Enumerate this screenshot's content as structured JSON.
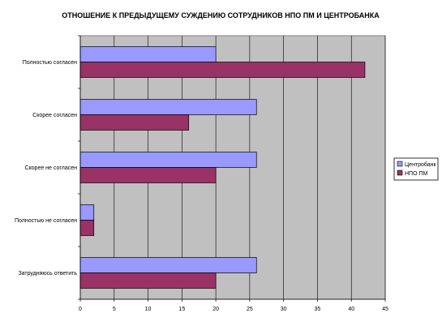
{
  "chart_data": {
    "type": "bar",
    "orientation": "horizontal",
    "title": "ОТНОШЕНИЕ К ПРЕДЫДУЩЕМУ СУЖДЕНИЮ СОТРУДНИКОВ НПО ПМ И ЦЕНТРОБАНКА",
    "xlabel": "",
    "ylabel": "",
    "categories": [
      "Полностью согласен",
      "Скорее согласен",
      "Скорее не согласен",
      "Полностью не согласен",
      "Затрудняюсь ответить"
    ],
    "series": [
      {
        "name": "Центробанк",
        "values": [
          20,
          26,
          26,
          2,
          26
        ],
        "color": "#9999ff"
      },
      {
        "name": "НПО ПМ",
        "values": [
          42,
          16,
          20,
          2,
          20
        ],
        "color": "#993366"
      }
    ],
    "xlim": [
      0,
      45
    ],
    "x_ticks": [
      "0",
      "5",
      "10",
      "15",
      "20",
      "25",
      "30",
      "35",
      "40",
      "45"
    ],
    "grid": true,
    "plot_background": "#c0c0c0",
    "legend_position": "right"
  }
}
